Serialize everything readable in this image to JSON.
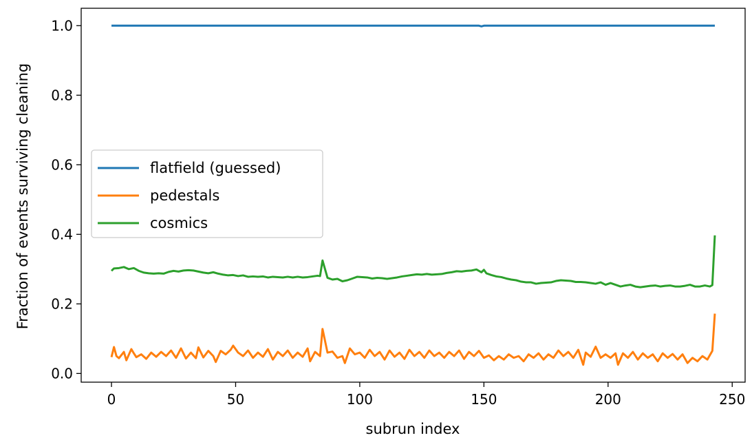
{
  "chart_data": {
    "type": "line",
    "title": "",
    "xlabel": "subrun index",
    "ylabel": "Fraction of events surviving cleaning",
    "xlim": [
      -12.2,
      255.2
    ],
    "ylim": [
      -0.025,
      1.05
    ],
    "xticks": [
      0,
      50,
      100,
      150,
      200,
      250
    ],
    "yticks": [
      0.0,
      0.2,
      0.4,
      0.6,
      0.8,
      1.0
    ],
    "xtick_labels": [
      "0",
      "50",
      "100",
      "150",
      "200",
      "250"
    ],
    "ytick_labels": [
      "0.0",
      "0.2",
      "0.4",
      "0.6",
      "0.8",
      "1.0"
    ],
    "grid": false,
    "legend_position": "center-left",
    "series": [
      {
        "name": "flatfield (guessed)",
        "color": "#1f77b4",
        "points": [
          [
            0,
            1.0
          ],
          [
            148,
            1.0
          ],
          [
            149,
            0.998
          ],
          [
            150,
            1.0
          ],
          [
            243,
            1.0
          ]
        ]
      },
      {
        "name": "pedestals",
        "color": "#ff7f0e",
        "points": [
          [
            0,
            0.047
          ],
          [
            1,
            0.076
          ],
          [
            2,
            0.05
          ],
          [
            3,
            0.044
          ],
          [
            5,
            0.062
          ],
          [
            6,
            0.038
          ],
          [
            8,
            0.07
          ],
          [
            9,
            0.058
          ],
          [
            10,
            0.047
          ],
          [
            12,
            0.055
          ],
          [
            14,
            0.042
          ],
          [
            16,
            0.06
          ],
          [
            18,
            0.048
          ],
          [
            20,
            0.062
          ],
          [
            22,
            0.05
          ],
          [
            24,
            0.066
          ],
          [
            26,
            0.045
          ],
          [
            28,
            0.072
          ],
          [
            30,
            0.043
          ],
          [
            32,
            0.06
          ],
          [
            34,
            0.044
          ],
          [
            35,
            0.075
          ],
          [
            37,
            0.046
          ],
          [
            39,
            0.065
          ],
          [
            41,
            0.05
          ],
          [
            42,
            0.033
          ],
          [
            44,
            0.065
          ],
          [
            46,
            0.055
          ],
          [
            48,
            0.068
          ],
          [
            49,
            0.08
          ],
          [
            51,
            0.06
          ],
          [
            53,
            0.05
          ],
          [
            55,
            0.066
          ],
          [
            57,
            0.045
          ],
          [
            59,
            0.06
          ],
          [
            61,
            0.048
          ],
          [
            63,
            0.07
          ],
          [
            65,
            0.04
          ],
          [
            67,
            0.062
          ],
          [
            69,
            0.05
          ],
          [
            71,
            0.066
          ],
          [
            73,
            0.045
          ],
          [
            75,
            0.06
          ],
          [
            77,
            0.048
          ],
          [
            79,
            0.072
          ],
          [
            80,
            0.035
          ],
          [
            82,
            0.062
          ],
          [
            84,
            0.05
          ],
          [
            85,
            0.128
          ],
          [
            87,
            0.06
          ],
          [
            89,
            0.063
          ],
          [
            91,
            0.045
          ],
          [
            93,
            0.05
          ],
          [
            94,
            0.03
          ],
          [
            96,
            0.072
          ],
          [
            98,
            0.055
          ],
          [
            100,
            0.06
          ],
          [
            102,
            0.045
          ],
          [
            104,
            0.068
          ],
          [
            106,
            0.05
          ],
          [
            108,
            0.062
          ],
          [
            110,
            0.04
          ],
          [
            112,
            0.066
          ],
          [
            114,
            0.048
          ],
          [
            116,
            0.06
          ],
          [
            118,
            0.042
          ],
          [
            120,
            0.068
          ],
          [
            122,
            0.05
          ],
          [
            124,
            0.062
          ],
          [
            126,
            0.045
          ],
          [
            128,
            0.066
          ],
          [
            130,
            0.05
          ],
          [
            132,
            0.06
          ],
          [
            134,
            0.045
          ],
          [
            136,
            0.062
          ],
          [
            138,
            0.05
          ],
          [
            140,
            0.066
          ],
          [
            142,
            0.042
          ],
          [
            144,
            0.062
          ],
          [
            146,
            0.05
          ],
          [
            148,
            0.065
          ],
          [
            150,
            0.045
          ],
          [
            152,
            0.052
          ],
          [
            154,
            0.038
          ],
          [
            156,
            0.05
          ],
          [
            158,
            0.04
          ],
          [
            160,
            0.055
          ],
          [
            162,
            0.045
          ],
          [
            164,
            0.05
          ],
          [
            166,
            0.035
          ],
          [
            168,
            0.055
          ],
          [
            170,
            0.045
          ],
          [
            172,
            0.058
          ],
          [
            174,
            0.04
          ],
          [
            176,
            0.055
          ],
          [
            178,
            0.045
          ],
          [
            180,
            0.066
          ],
          [
            182,
            0.05
          ],
          [
            184,
            0.062
          ],
          [
            186,
            0.045
          ],
          [
            188,
            0.068
          ],
          [
            190,
            0.025
          ],
          [
            191,
            0.06
          ],
          [
            193,
            0.048
          ],
          [
            195,
            0.077
          ],
          [
            197,
            0.045
          ],
          [
            199,
            0.055
          ],
          [
            201,
            0.045
          ],
          [
            203,
            0.058
          ],
          [
            204,
            0.025
          ],
          [
            206,
            0.058
          ],
          [
            208,
            0.045
          ],
          [
            210,
            0.062
          ],
          [
            212,
            0.04
          ],
          [
            214,
            0.058
          ],
          [
            216,
            0.045
          ],
          [
            218,
            0.055
          ],
          [
            220,
            0.035
          ],
          [
            222,
            0.058
          ],
          [
            224,
            0.045
          ],
          [
            226,
            0.056
          ],
          [
            228,
            0.04
          ],
          [
            230,
            0.055
          ],
          [
            232,
            0.03
          ],
          [
            234,
            0.045
          ],
          [
            236,
            0.035
          ],
          [
            238,
            0.05
          ],
          [
            240,
            0.04
          ],
          [
            242,
            0.065
          ],
          [
            243,
            0.172
          ]
        ]
      },
      {
        "name": "cosmics",
        "color": "#2ca02c",
        "points": [
          [
            0,
            0.295
          ],
          [
            1,
            0.302
          ],
          [
            3,
            0.303
          ],
          [
            5,
            0.306
          ],
          [
            7,
            0.3
          ],
          [
            9,
            0.303
          ],
          [
            11,
            0.295
          ],
          [
            13,
            0.29
          ],
          [
            15,
            0.288
          ],
          [
            17,
            0.287
          ],
          [
            19,
            0.288
          ],
          [
            21,
            0.287
          ],
          [
            23,
            0.292
          ],
          [
            25,
            0.295
          ],
          [
            27,
            0.293
          ],
          [
            29,
            0.296
          ],
          [
            31,
            0.297
          ],
          [
            33,
            0.296
          ],
          [
            35,
            0.293
          ],
          [
            37,
            0.29
          ],
          [
            39,
            0.288
          ],
          [
            41,
            0.291
          ],
          [
            43,
            0.287
          ],
          [
            45,
            0.284
          ],
          [
            47,
            0.282
          ],
          [
            49,
            0.283
          ],
          [
            51,
            0.28
          ],
          [
            53,
            0.282
          ],
          [
            55,
            0.278
          ],
          [
            57,
            0.279
          ],
          [
            59,
            0.278
          ],
          [
            61,
            0.279
          ],
          [
            63,
            0.276
          ],
          [
            65,
            0.278
          ],
          [
            67,
            0.277
          ],
          [
            69,
            0.276
          ],
          [
            71,
            0.278
          ],
          [
            73,
            0.276
          ],
          [
            75,
            0.278
          ],
          [
            77,
            0.276
          ],
          [
            79,
            0.277
          ],
          [
            81,
            0.279
          ],
          [
            83,
            0.281
          ],
          [
            84,
            0.28
          ],
          [
            85,
            0.325
          ],
          [
            86,
            0.3
          ],
          [
            87,
            0.275
          ],
          [
            89,
            0.27
          ],
          [
            91,
            0.272
          ],
          [
            93,
            0.265
          ],
          [
            95,
            0.268
          ],
          [
            97,
            0.273
          ],
          [
            99,
            0.278
          ],
          [
            101,
            0.277
          ],
          [
            103,
            0.276
          ],
          [
            105,
            0.273
          ],
          [
            107,
            0.275
          ],
          [
            109,
            0.274
          ],
          [
            111,
            0.272
          ],
          [
            113,
            0.274
          ],
          [
            115,
            0.276
          ],
          [
            117,
            0.279
          ],
          [
            119,
            0.281
          ],
          [
            121,
            0.283
          ],
          [
            123,
            0.285
          ],
          [
            125,
            0.284
          ],
          [
            127,
            0.286
          ],
          [
            129,
            0.284
          ],
          [
            131,
            0.285
          ],
          [
            133,
            0.286
          ],
          [
            135,
            0.289
          ],
          [
            137,
            0.291
          ],
          [
            139,
            0.294
          ],
          [
            141,
            0.293
          ],
          [
            143,
            0.295
          ],
          [
            145,
            0.296
          ],
          [
            147,
            0.299
          ],
          [
            149,
            0.291
          ],
          [
            150,
            0.298
          ],
          [
            151,
            0.288
          ],
          [
            153,
            0.283
          ],
          [
            155,
            0.279
          ],
          [
            157,
            0.277
          ],
          [
            159,
            0.273
          ],
          [
            161,
            0.27
          ],
          [
            163,
            0.268
          ],
          [
            165,
            0.264
          ],
          [
            167,
            0.262
          ],
          [
            169,
            0.262
          ],
          [
            171,
            0.258
          ],
          [
            173,
            0.26
          ],
          [
            175,
            0.261
          ],
          [
            177,
            0.262
          ],
          [
            179,
            0.266
          ],
          [
            181,
            0.268
          ],
          [
            183,
            0.267
          ],
          [
            185,
            0.266
          ],
          [
            187,
            0.263
          ],
          [
            189,
            0.263
          ],
          [
            191,
            0.262
          ],
          [
            193,
            0.26
          ],
          [
            195,
            0.258
          ],
          [
            197,
            0.262
          ],
          [
            199,
            0.255
          ],
          [
            201,
            0.26
          ],
          [
            203,
            0.255
          ],
          [
            205,
            0.25
          ],
          [
            207,
            0.253
          ],
          [
            209,
            0.255
          ],
          [
            211,
            0.25
          ],
          [
            213,
            0.248
          ],
          [
            215,
            0.25
          ],
          [
            217,
            0.252
          ],
          [
            219,
            0.253
          ],
          [
            221,
            0.25
          ],
          [
            223,
            0.252
          ],
          [
            225,
            0.253
          ],
          [
            227,
            0.25
          ],
          [
            229,
            0.25
          ],
          [
            231,
            0.252
          ],
          [
            233,
            0.255
          ],
          [
            235,
            0.25
          ],
          [
            237,
            0.25
          ],
          [
            239,
            0.253
          ],
          [
            241,
            0.25
          ],
          [
            242,
            0.254
          ],
          [
            243,
            0.397
          ]
        ]
      }
    ]
  }
}
